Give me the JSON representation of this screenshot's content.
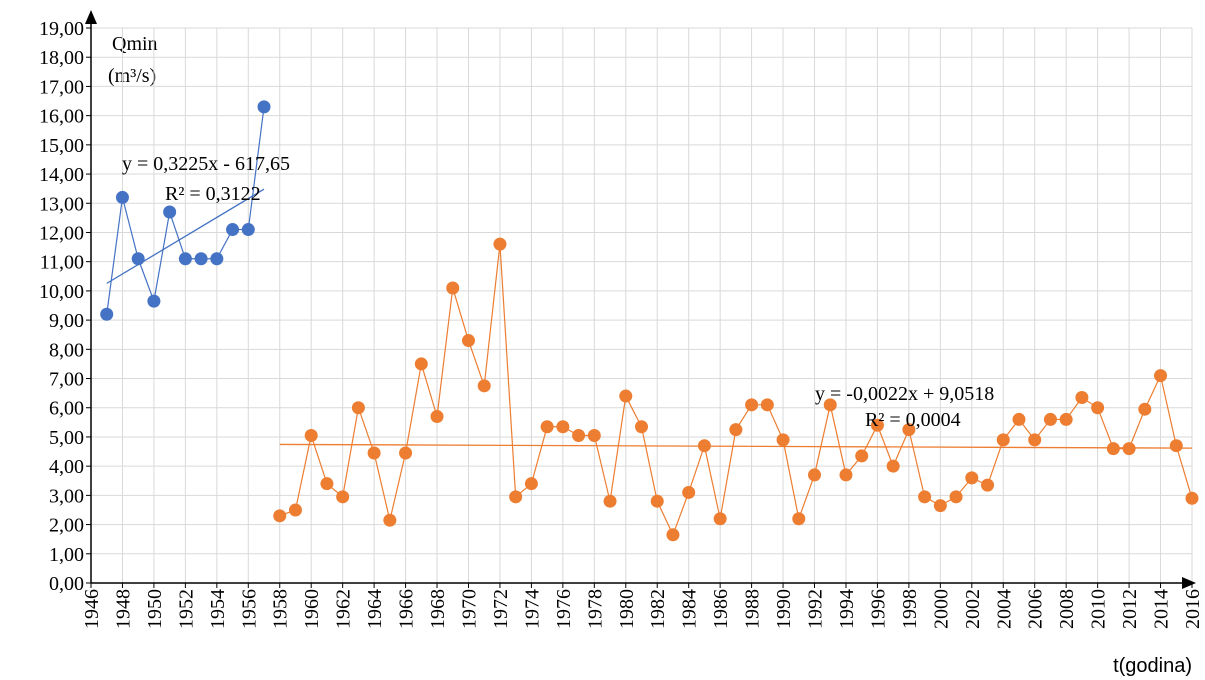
{
  "chart_data": {
    "type": "scatter-line",
    "y_label": "Qmin",
    "y_unit": "(m³/s)",
    "x_label": "t(godina)",
    "xlim": [
      1946,
      2016
    ],
    "ylim": [
      0,
      19
    ],
    "xticks": [
      1946,
      1948,
      1950,
      1952,
      1954,
      1956,
      1958,
      1960,
      1962,
      1964,
      1966,
      1968,
      1970,
      1972,
      1974,
      1976,
      1978,
      1980,
      1982,
      1984,
      1986,
      1988,
      1990,
      1992,
      1994,
      1996,
      1998,
      2000,
      2002,
      2004,
      2006,
      2008,
      2010,
      2012,
      2014,
      2016
    ],
    "yticks": [
      {
        "value": 0,
        "label": "0,00"
      },
      {
        "value": 1,
        "label": "1,00"
      },
      {
        "value": 2,
        "label": "2,00"
      },
      {
        "value": 3,
        "label": "3,00"
      },
      {
        "value": 4,
        "label": "4,00"
      },
      {
        "value": 5,
        "label": "5,00"
      },
      {
        "value": 6,
        "label": "6,00"
      },
      {
        "value": 7,
        "label": "7,00"
      },
      {
        "value": 8,
        "label": "8,00"
      },
      {
        "value": 9,
        "label": "9,00"
      },
      {
        "value": 10,
        "label": "10,00"
      },
      {
        "value": 11,
        "label": "11,00"
      },
      {
        "value": 12,
        "label": "12,00"
      },
      {
        "value": 13,
        "label": "13,00"
      },
      {
        "value": 14,
        "label": "14,00"
      },
      {
        "value": 15,
        "label": "15,00"
      },
      {
        "value": 16,
        "label": "16,00"
      },
      {
        "value": 17,
        "label": "17,00"
      },
      {
        "value": 18,
        "label": "18,00"
      },
      {
        "value": 19,
        "label": "19,00"
      }
    ],
    "grid": true,
    "series": [
      {
        "color": "#4472c4",
        "x": [
          1947,
          1948,
          1949,
          1950,
          1951,
          1952,
          1953,
          1954,
          1955,
          1956,
          1957
        ],
        "values": [
          9.2,
          13.2,
          11.1,
          9.65,
          12.7,
          11.1,
          11.1,
          11.1,
          12.1,
          12.1,
          16.3
        ],
        "trendline": {
          "slope": 0.3225,
          "intercept": -617.65,
          "equation": "y = 0,3225x - 617,65",
          "r2": "R² = 0,3122"
        }
      },
      {
        "color": "#ed7d31",
        "x": [
          1958,
          1959,
          1960,
          1961,
          1962,
          1963,
          1964,
          1965,
          1966,
          1967,
          1968,
          1969,
          1970,
          1971,
          1972,
          1973,
          1974,
          1975,
          1976,
          1977,
          1978,
          1979,
          1980,
          1981,
          1982,
          1983,
          1984,
          1985,
          1986,
          1987,
          1988,
          1989,
          1990,
          1991,
          1992,
          1993,
          1994,
          1995,
          1996,
          1997,
          1998,
          1999,
          2000,
          2001,
          2002,
          2003,
          2004,
          2005,
          2006,
          2007,
          2008,
          2009,
          2010,
          2011,
          2012,
          2013,
          2014,
          2015,
          2016
        ],
        "values": [
          2.3,
          2.5,
          5.05,
          3.4,
          2.95,
          6.0,
          4.45,
          2.15,
          4.45,
          7.5,
          5.7,
          10.1,
          8.3,
          6.75,
          11.6,
          2.95,
          3.4,
          5.35,
          5.35,
          5.05,
          5.05,
          2.8,
          6.4,
          5.35,
          2.8,
          1.65,
          3.1,
          4.7,
          2.2,
          5.25,
          6.1,
          6.1,
          4.9,
          2.2,
          3.7,
          6.1,
          3.7,
          4.35,
          5.4,
          4.0,
          5.25,
          2.95,
          2.65,
          2.95,
          3.6,
          3.35,
          4.9,
          5.6,
          4.9,
          5.6,
          5.6,
          6.35,
          6.0,
          4.6,
          4.6,
          5.95,
          7.1,
          4.7,
          2.9
        ],
        "trendline": {
          "slope": -0.0022,
          "intercept": 9.0518,
          "equation": "y = -0,0022x + 9,0518",
          "r2": "R² = 0,0004"
        }
      }
    ]
  }
}
